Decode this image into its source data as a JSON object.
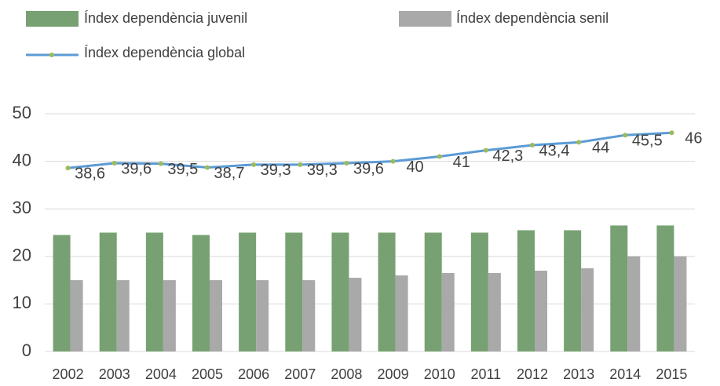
{
  "chart_data": {
    "type": "bar_line",
    "categories": [
      "2002",
      "2003",
      "2004",
      "2005",
      "2006",
      "2007",
      "2008",
      "2009",
      "2010",
      "2011",
      "2012",
      "2013",
      "2014",
      "2015"
    ],
    "series": [
      {
        "name": "Índex dependència juvenil",
        "type": "bar",
        "color": "#77a172",
        "values": [
          24.5,
          25,
          25,
          24.5,
          25,
          25,
          25,
          25,
          25,
          25,
          25.5,
          25.5,
          26.5,
          26.5
        ]
      },
      {
        "name": "Índex dependència senil",
        "type": "bar",
        "color": "#a9a9a9",
        "values": [
          15,
          15,
          15,
          15,
          15,
          15,
          15.5,
          16,
          16.5,
          16.5,
          17,
          17.5,
          20,
          20
        ]
      },
      {
        "name": "Índex dependència global",
        "type": "line",
        "color": "#5b9bd5",
        "marker_color": "#9bbb59",
        "values": [
          38.6,
          39.6,
          39.5,
          38.7,
          39.3,
          39.3,
          39.6,
          40,
          41,
          42.3,
          43.4,
          44,
          45.5,
          46
        ],
        "value_labels": [
          "38,6",
          "39,6",
          "39,5",
          "38,7",
          "39,3",
          "39,3",
          "39,6",
          "40",
          "41",
          "42,3",
          "43,4",
          "44",
          "45,5",
          "46"
        ]
      }
    ],
    "ylim": [
      0,
      50
    ],
    "yticks": [
      0,
      10,
      20,
      30,
      40,
      50
    ],
    "grid": true,
    "legend": "top"
  }
}
